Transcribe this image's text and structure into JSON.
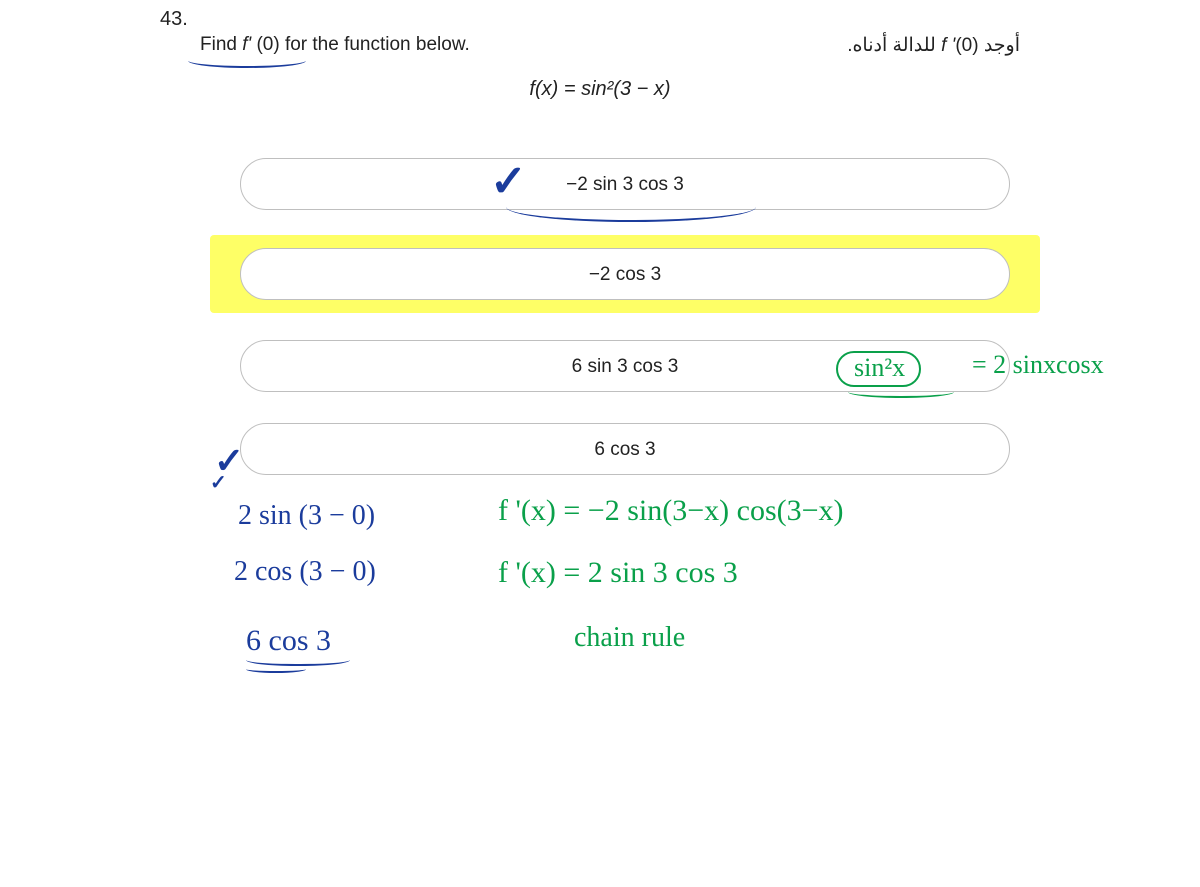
{
  "question_number": "43.",
  "prompt_en_pre": "Find ",
  "prompt_en_ital": "f' ",
  "prompt_en_post": "(0) for the function below.",
  "prompt_ar_pre": "أوجد ",
  "prompt_ar_f": "f '",
  "prompt_ar_post": "(0) للدالة أدناه.",
  "formula": "f(x) = sin²(3 − x)",
  "options": {
    "a": "−2 sin 3 cos 3",
    "b": "−2 cos 3",
    "c": "6 sin 3 cos 3",
    "d": "6 cos 3"
  },
  "handwritten": {
    "checkmark": "✓",
    "check2": "✓",
    "check2b": "✓",
    "hint_bubble": "sin²x",
    "hint_rest": "= 2 sinxcosx",
    "work1": "2 sin (3 − 0)",
    "work2": "2 cos (3 − 0)",
    "work3": "6 cos 3",
    "calc1": "f '(x) = −2 sin(3−x) cos(3−x)",
    "calc2": "f '(x)  =  2 sin 3  cos 3",
    "calc3": "chain rule"
  },
  "colors": {
    "option_border": "#bfbfbf",
    "highlight": "#feff66",
    "blue_pen": "#1b3c9c",
    "green_pen": "#0aa04a",
    "text": "#222222",
    "background": "#ffffff"
  }
}
